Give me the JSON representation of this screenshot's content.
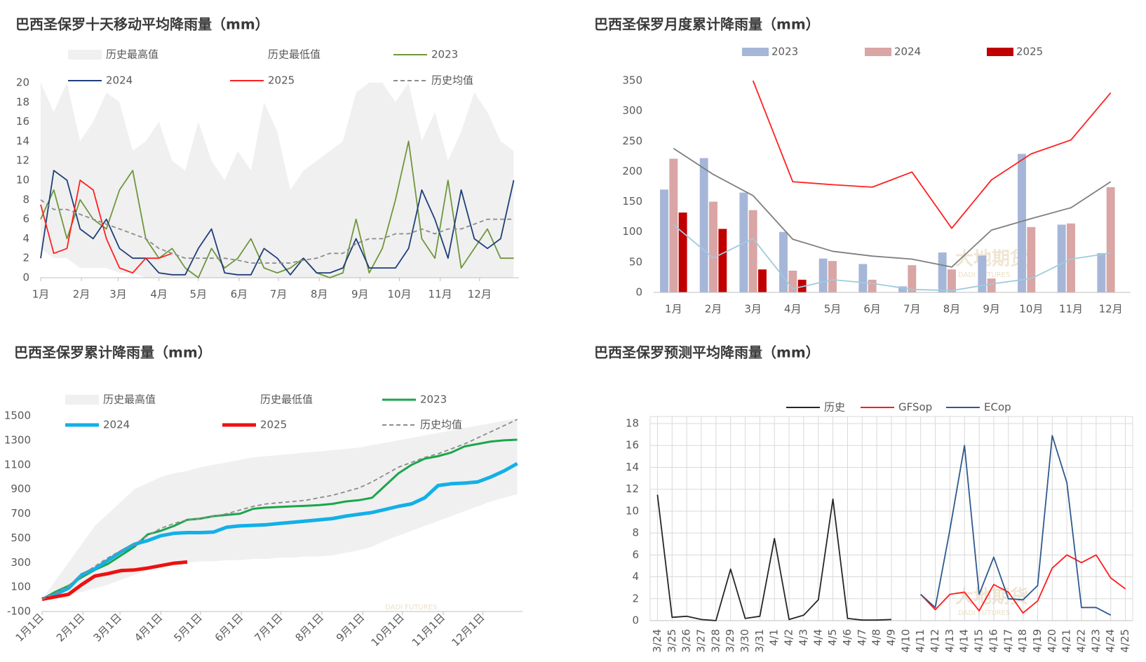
{
  "watermark": [
    "大地期货",
    "DADI FUTURES"
  ],
  "chart_data": [
    {
      "type": "line",
      "title": "巴西圣保罗十天移动平均降雨量（mm）",
      "x": [
        1,
        11,
        21,
        31,
        41,
        51,
        61,
        71,
        81,
        91,
        101,
        111,
        121,
        131,
        141,
        151,
        161,
        171,
        181,
        191,
        201,
        211,
        221,
        231,
        241,
        251,
        261,
        271,
        281,
        291,
        301,
        311,
        321,
        331,
        341,
        351,
        361
      ],
      "xlim": [
        1,
        365
      ],
      "xticks": [
        {
          "value": 1,
          "label": "1月"
        },
        {
          "value": 32,
          "label": "2月"
        },
        {
          "value": 60,
          "label": "3月"
        },
        {
          "value": 91,
          "label": "4月"
        },
        {
          "value": 121,
          "label": "5月"
        },
        {
          "value": 152,
          "label": "6月"
        },
        {
          "value": 182,
          "label": "7月"
        },
        {
          "value": 213,
          "label": "8月"
        },
        {
          "value": 244,
          "label": "9月"
        },
        {
          "value": 274,
          "label": "10月"
        },
        {
          "value": 305,
          "label": "11月"
        },
        {
          "value": 335,
          "label": "12月"
        }
      ],
      "ylim": [
        0,
        20
      ],
      "yticks": [
        0,
        2,
        4,
        6,
        8,
        10,
        12,
        14,
        16,
        18,
        20
      ],
      "grid": false,
      "series": [
        {
          "name": "历史最高值",
          "color": "#f0f0f0",
          "kind": "area",
          "values": [
            20,
            17,
            20,
            14,
            16,
            19,
            18,
            13,
            14,
            16,
            12,
            11,
            16,
            12,
            10,
            13,
            11,
            18,
            15,
            9,
            11,
            12,
            13,
            14,
            19,
            20,
            20,
            18,
            20,
            14,
            17,
            12,
            15,
            19,
            17,
            14,
            13
          ]
        },
        {
          "name": "历史最低值",
          "color": "#ffffff",
          "kind": "area",
          "values": [
            3,
            2,
            2,
            1,
            1,
            1,
            0.5,
            0.5,
            0,
            0,
            0,
            0,
            0,
            0,
            0,
            0,
            0,
            0,
            0,
            0,
            0,
            0,
            0,
            0,
            0,
            0,
            0,
            0,
            0,
            0,
            0,
            0,
            0,
            0,
            0,
            0,
            0
          ]
        },
        {
          "name": "2023",
          "color": "#70963c",
          "values": [
            6,
            9,
            4,
            8,
            6,
            5,
            9,
            11,
            4,
            2,
            3,
            1,
            0,
            3,
            1,
            2,
            4,
            1,
            0.5,
            1,
            2,
            0.5,
            0,
            0.5,
            6,
            0.5,
            3,
            8,
            14,
            4,
            2,
            10,
            1,
            3,
            5,
            2,
            2
          ]
        },
        {
          "name": "2024",
          "color": "#1f3f7a",
          "values": [
            2,
            11,
            10,
            5,
            4,
            6,
            3,
            2,
            2,
            0.5,
            0.3,
            0.3,
            3,
            5,
            0.5,
            0.3,
            0.3,
            3,
            2,
            0.3,
            2,
            0.5,
            0.5,
            1,
            4,
            1,
            1,
            1,
            3,
            9,
            6,
            2,
            9,
            4,
            3,
            4,
            10
          ]
        },
        {
          "name": "2025",
          "color": "#ff2020",
          "values": [
            7.5,
            2.5,
            3,
            10,
            9,
            4,
            1,
            0.5,
            2,
            2,
            2.5,
            null,
            null,
            null,
            null,
            null,
            null,
            null,
            null,
            null,
            null,
            null,
            null,
            null,
            null,
            null,
            null,
            null,
            null,
            null,
            null,
            null,
            null,
            null,
            null,
            null,
            null
          ]
        },
        {
          "name": "历史均值",
          "color": "#8c8c8c",
          "dash": true,
          "values": [
            8,
            7,
            7,
            6.5,
            6,
            5.5,
            5,
            4.5,
            4,
            3,
            2.5,
            2,
            2,
            2,
            2,
            1.8,
            1.5,
            1.5,
            1.5,
            1.5,
            1.8,
            2,
            2.5,
            2.5,
            3.5,
            4,
            4,
            4.5,
            4.5,
            5,
            4.5,
            5,
            5,
            5.5,
            6,
            6,
            6
          ]
        }
      ]
    },
    {
      "type": "bar",
      "title": "巴西圣保罗月度累计降雨量（mm）",
      "categories": [
        "1月",
        "2月",
        "3月",
        "4月",
        "5月",
        "6月",
        "7月",
        "8月",
        "9月",
        "10月",
        "11月",
        "12月"
      ],
      "ylim": [
        0,
        350
      ],
      "yticks": [
        0,
        50,
        100,
        150,
        200,
        250,
        300,
        350
      ],
      "grid": false,
      "series": [
        {
          "name": "2023",
          "color": "#a6b6d8",
          "values": [
            170,
            222,
            165,
            100,
            56,
            47,
            10,
            66,
            61,
            229,
            112,
            65
          ]
        },
        {
          "name": "2024",
          "color": "#d9a5a5",
          "values": [
            221,
            150,
            136,
            36,
            52,
            21,
            45,
            38,
            23,
            108,
            114,
            174
          ]
        },
        {
          "name": "2025",
          "color": "#c00000",
          "values": [
            132,
            105,
            38,
            21,
            null,
            null,
            null,
            null,
            null,
            null,
            null,
            null
          ]
        }
      ],
      "lines": [
        {
          "color": "#ff2020",
          "values": [
            null,
            null,
            350,
            183,
            178,
            174,
            199,
            106,
            186,
            229,
            252,
            330
          ]
        },
        {
          "color": "#7f7f7f",
          "values": [
            238,
            195,
            160,
            88,
            68,
            60,
            55,
            42,
            103,
            122,
            140,
            183
          ]
        },
        {
          "color": "#9fcbdc",
          "values": [
            112,
            57,
            89,
            6,
            21,
            15,
            5,
            3,
            14,
            23,
            55,
            65
          ]
        }
      ]
    },
    {
      "type": "line",
      "title": "巴西圣保罗累计降雨量（mm）",
      "x": [
        1,
        11,
        21,
        31,
        41,
        51,
        61,
        71,
        81,
        91,
        101,
        111,
        121,
        131,
        141,
        151,
        161,
        171,
        181,
        191,
        201,
        211,
        221,
        231,
        241,
        251,
        261,
        271,
        281,
        291,
        301,
        311,
        321,
        331,
        341,
        351,
        361
      ],
      "xlim": [
        1,
        365
      ],
      "xticks": [
        {
          "value": 1,
          "label": "1月1日"
        },
        {
          "value": 32,
          "label": "2月1日"
        },
        {
          "value": 60,
          "label": "3月1日"
        },
        {
          "value": 91,
          "label": "4月1日"
        },
        {
          "value": 121,
          "label": "5月1日"
        },
        {
          "value": 152,
          "label": "6月1日"
        },
        {
          "value": 182,
          "label": "7月1日"
        },
        {
          "value": 213,
          "label": "8月1日"
        },
        {
          "value": 244,
          "label": "9月1日"
        },
        {
          "value": 274,
          "label": "10月1日"
        },
        {
          "value": 305,
          "label": "11月1日"
        },
        {
          "value": 335,
          "label": "12月1日"
        }
      ],
      "ylim": [
        -100,
        1500
      ],
      "yticks": [
        -100,
        100,
        300,
        500,
        700,
        900,
        1100,
        1300,
        1500
      ],
      "grid": false,
      "series": [
        {
          "name": "历史最高值",
          "color": "#f0f0f0",
          "kind": "area",
          "values": [
            0,
            150,
            300,
            450,
            600,
            700,
            800,
            900,
            950,
            1000,
            1030,
            1050,
            1080,
            1100,
            1120,
            1140,
            1160,
            1170,
            1180,
            1190,
            1200,
            1210,
            1220,
            1230,
            1240,
            1260,
            1280,
            1300,
            1320,
            1340,
            1360,
            1380,
            1400,
            1420,
            1440,
            1460,
            1480
          ]
        },
        {
          "name": "历史最低值",
          "color": "#ffffff",
          "kind": "area",
          "values": [
            0,
            20,
            40,
            60,
            90,
            120,
            160,
            200,
            240,
            270,
            290,
            300,
            310,
            310,
            320,
            320,
            330,
            330,
            340,
            340,
            350,
            350,
            360,
            380,
            400,
            430,
            480,
            520,
            560,
            600,
            640,
            680,
            720,
            760,
            800,
            830,
            860
          ]
        },
        {
          "name": "2023",
          "color": "#1aa64a",
          "width": 3,
          "values": [
            0,
            60,
            110,
            180,
            240,
            290,
            360,
            430,
            530,
            560,
            600,
            650,
            660,
            680,
            690,
            700,
            740,
            750,
            755,
            760,
            765,
            770,
            780,
            800,
            810,
            830,
            930,
            1030,
            1100,
            1150,
            1170,
            1200,
            1250,
            1270,
            1290,
            1300,
            1305
          ]
        },
        {
          "name": "2024",
          "color": "#12b0e8",
          "width": 5,
          "values": [
            0,
            40,
            90,
            200,
            250,
            320,
            390,
            450,
            480,
            520,
            540,
            545,
            545,
            550,
            590,
            600,
            605,
            610,
            620,
            630,
            640,
            650,
            660,
            680,
            695,
            710,
            735,
            760,
            780,
            830,
            930,
            945,
            950,
            960,
            1000,
            1050,
            1110
          ]
        },
        {
          "name": "2025",
          "color": "#ee1111",
          "width": 5,
          "values": [
            0,
            20,
            40,
            120,
            190,
            210,
            235,
            240,
            255,
            275,
            295,
            305,
            null,
            null,
            null,
            null,
            null,
            null,
            null,
            null,
            null,
            null,
            null,
            null,
            null,
            null,
            null,
            null,
            null,
            null,
            null,
            null,
            null,
            null,
            null,
            null,
            null
          ]
        },
        {
          "name": "历史均值",
          "color": "#8c8c8c",
          "dash": true,
          "values": [
            0,
            50,
            110,
            200,
            270,
            340,
            400,
            450,
            520,
            580,
            620,
            650,
            660,
            680,
            700,
            730,
            760,
            780,
            790,
            800,
            810,
            830,
            850,
            880,
            910,
            960,
            1020,
            1080,
            1120,
            1160,
            1190,
            1230,
            1270,
            1320,
            1370,
            1420,
            1470
          ]
        }
      ]
    },
    {
      "type": "line",
      "title": "巴西圣保罗预测平均降雨量（mm）",
      "categories": [
        "3/24",
        "3/25",
        "3/26",
        "3/27",
        "3/28",
        "3/29",
        "3/30",
        "3/31",
        "4/1",
        "4/2",
        "4/3",
        "4/4",
        "4/5",
        "4/6",
        "4/7",
        "4/8",
        "4/9",
        "4/10",
        "4/11",
        "4/12",
        "4/13",
        "4/14",
        "4/15",
        "4/16",
        "4/17",
        "4/18",
        "4/19",
        "4/20",
        "4/21",
        "4/22",
        "4/23",
        "4/24",
        "4/25"
      ],
      "ylim": [
        0,
        18
      ],
      "yticks": [
        0,
        2,
        4,
        6,
        8,
        10,
        12,
        14,
        16,
        18
      ],
      "grid": true,
      "series": [
        {
          "name": "历史",
          "color": "#262626",
          "values": [
            11.5,
            0.3,
            0.4,
            0.1,
            0,
            4.7,
            0.2,
            0.4,
            7.5,
            0.1,
            0.5,
            1.9,
            11.1,
            0.2,
            0.05,
            0.05,
            0.1,
            null,
            null,
            null,
            null,
            null,
            null,
            null,
            null,
            null,
            null,
            null,
            null,
            null,
            null,
            null,
            null
          ]
        },
        {
          "name": "GFSop",
          "color": "#ff1a1a",
          "values": [
            null,
            null,
            null,
            null,
            null,
            null,
            null,
            null,
            null,
            null,
            null,
            null,
            null,
            null,
            null,
            null,
            null,
            null,
            2.4,
            1,
            2.4,
            2.6,
            0.9,
            3.3,
            2.6,
            0.7,
            1.8,
            4.8,
            6,
            5.3,
            6,
            3.9,
            2.9
          ]
        },
        {
          "name": "ECop",
          "color": "#2e5a8e",
          "values": [
            null,
            null,
            null,
            null,
            null,
            null,
            null,
            null,
            null,
            null,
            null,
            null,
            null,
            null,
            null,
            null,
            null,
            null,
            2.4,
            1.2,
            8.3,
            16,
            2.4,
            5.8,
            2,
            1.9,
            3.2,
            16.9,
            12.6,
            1.2,
            1.2,
            0.5,
            null
          ]
        }
      ]
    }
  ]
}
